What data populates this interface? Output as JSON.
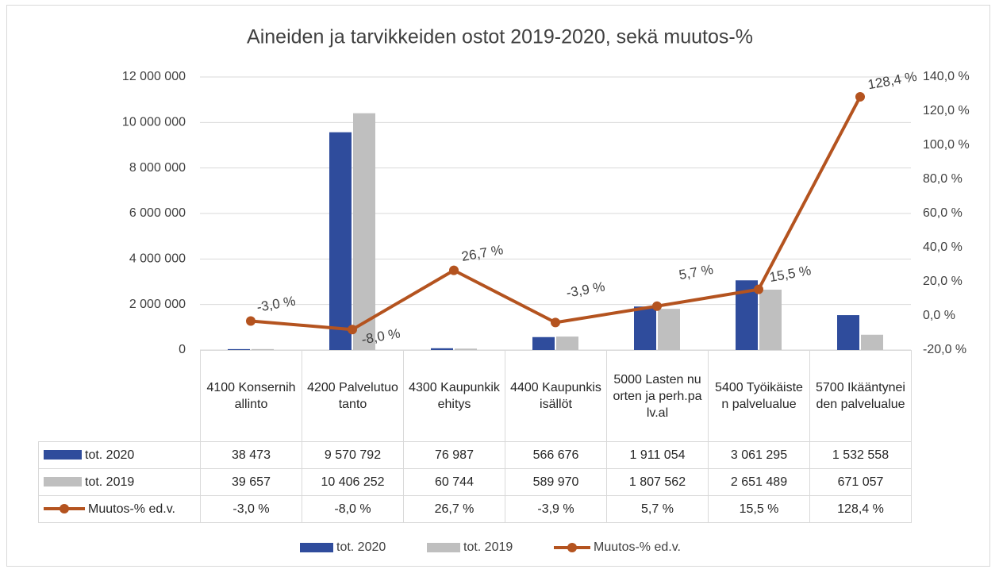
{
  "chart_data": {
    "type": "bar",
    "title": "Aineiden ja tarvikkeiden ostot 2019-2020, sekä muutos-%",
    "categories": [
      "4100 Konsernihallinto",
      "4200 Palvelutuotanto",
      "4300 Kaupunkikehitys",
      "4400 Kaupunkisisällöt",
      "5000 Lasten nuorten ja perh.palv.al",
      "5400 Työikäisten palvelualue",
      "5700 Ikääntyneiden palvelualue"
    ],
    "series": [
      {
        "name": "tot. 2020",
        "type": "bar",
        "color": "#2f4c9c",
        "values": [
          38473,
          9570792,
          76987,
          566676,
          1911054,
          3061295,
          1532558
        ],
        "value_labels": [
          "38 473",
          "9 570 792",
          "76 987",
          "566 676",
          "1 911 054",
          "3 061 295",
          "1 532 558"
        ]
      },
      {
        "name": "tot. 2019",
        "type": "bar",
        "color": "#bfbfbf",
        "values": [
          39657,
          10406252,
          60744,
          589970,
          1807562,
          2651489,
          671057
        ],
        "value_labels": [
          "39 657",
          "10 406 252",
          "60 744",
          "589 970",
          "1 807 562",
          "2 651 489",
          "671 057"
        ]
      },
      {
        "name": "Muutos-% ed.v.",
        "type": "line",
        "axis": "y2",
        "color": "#b4531f",
        "values": [
          -3.0,
          -8.0,
          26.7,
          -3.9,
          5.7,
          15.5,
          128.4
        ],
        "value_labels": [
          "-3,0 %",
          "-8,0 %",
          "26,7 %",
          "-3,9 %",
          "5,7 %",
          "15,5 %",
          "128,4 %"
        ]
      }
    ],
    "ylim": [
      0,
      12000000
    ],
    "yticks": [
      0,
      {
        "value": 2000000,
        "label": "2 000 000"
      },
      {
        "value": 4000000,
        "label": "4 000 000"
      },
      {
        "value": 6000000,
        "label": "6 000 000"
      },
      {
        "value": 8000000,
        "label": "8 000 000"
      },
      {
        "value": 10000000,
        "label": "10 000 000"
      },
      {
        "value": 12000000,
        "label": "12 000 000"
      }
    ],
    "y2lim": [
      -20,
      140
    ],
    "y2ticks": [
      {
        "value": -20,
        "label": "-20,0 %"
      },
      {
        "value": 0,
        "label": "0,0 %"
      },
      {
        "value": 20,
        "label": "20,0 %"
      },
      {
        "value": 40,
        "label": "40,0 %"
      },
      {
        "value": 60,
        "label": "60,0 %"
      },
      {
        "value": 80,
        "label": "80,0 %"
      },
      {
        "value": 100,
        "label": "100,0 %"
      },
      {
        "value": 120,
        "label": "120,0 %"
      },
      {
        "value": 140,
        "label": "140,0 %"
      }
    ],
    "grid": true,
    "legend": "bottom"
  }
}
